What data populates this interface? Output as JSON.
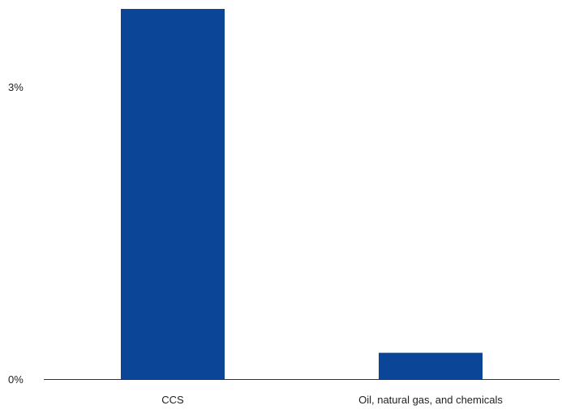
{
  "chart_data": {
    "type": "bar",
    "categories": [
      "CCS",
      "Oil, natural gas, and chemicals"
    ],
    "values": [
      3.8,
      0.27
    ],
    "ylim": [
      0,
      3.8
    ],
    "yticks": [
      {
        "value": 0,
        "label": "0%"
      },
      {
        "value": 3,
        "label": "3%"
      }
    ],
    "title": "",
    "xlabel": "",
    "ylabel": "",
    "grid": false,
    "legend": "none",
    "colors": {
      "bar": "#0b4597",
      "axis": "#333333",
      "text": "#222222"
    }
  }
}
